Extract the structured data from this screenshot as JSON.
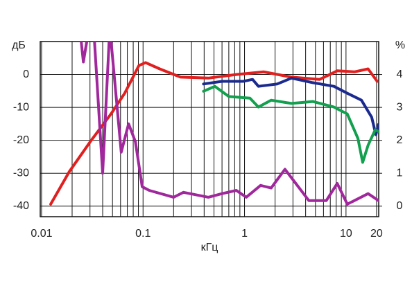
{
  "chart_data": {
    "type": "line",
    "y_label": "дБ",
    "y2_label": "%",
    "x_label": "кГц",
    "log_x": true,
    "grid": true,
    "xlim": [
      0.0097,
      21
    ],
    "xticks": [
      0.01,
      0.1,
      1,
      10,
      20
    ],
    "x_minor_grid": [
      0.02,
      0.03,
      0.04,
      0.05,
      0.06,
      0.07,
      0.08,
      0.09,
      0.2,
      0.3,
      0.4,
      0.5,
      0.6,
      0.7,
      0.8,
      0.9,
      2,
      3,
      4,
      5,
      6,
      7,
      8,
      9
    ],
    "ylim": [
      -43.2,
      10
    ],
    "yticks": [
      -40,
      -30,
      -20,
      -10,
      0
    ],
    "y2lim": [
      -0.32,
      5
    ],
    "y2ticks": [
      0,
      1,
      2,
      3,
      4
    ],
    "series": [
      {
        "name": "red",
        "color": "#e01f1f",
        "x": [
          0.0123,
          0.0188,
          0.0302,
          0.0483,
          0.066,
          0.091,
          0.106,
          0.146,
          0.234,
          0.44,
          0.83,
          1.55,
          2.9,
          5.5,
          8.2,
          12.1,
          16.5,
          20.3
        ],
        "values": [
          -39.4,
          -29.5,
          -20.4,
          -12,
          -5.7,
          2.7,
          3.6,
          1.7,
          -0.8,
          -1.1,
          0,
          0.8,
          -0.8,
          -1.5,
          1.1,
          0.8,
          1.7,
          -2.1
        ]
      },
      {
        "name": "blue",
        "color": "#1b2a8e",
        "x": [
          0.394,
          0.6,
          0.97,
          1.2,
          1.37,
          2.1,
          2.9,
          4.7,
          7.6,
          10.3,
          14.2,
          17.9,
          19.7,
          20.9
        ],
        "values": [
          -2.9,
          -2.1,
          -2.1,
          -1.5,
          -3.6,
          -2.9,
          -1.1,
          -2.5,
          -3.6,
          -5.7,
          -7.8,
          -13,
          -18.3,
          -15.2
        ]
      },
      {
        "name": "green",
        "color": "#12a04e",
        "x": [
          0.394,
          0.51,
          0.7,
          1.13,
          1.37,
          1.83,
          2.9,
          4.7,
          7.6,
          10.3,
          13.1,
          14.6,
          16.5,
          19.4,
          20.9
        ],
        "values": [
          -5.1,
          -3.6,
          -6.7,
          -7.2,
          -9.9,
          -7.8,
          -8.8,
          -8.2,
          -9.9,
          -12,
          -19.4,
          -26.7,
          -21.5,
          -16.8,
          -17.3
        ]
      },
      {
        "name": "purple",
        "color": "#a0289c",
        "axis": "y2",
        "x": [
          0.0246,
          0.0258,
          0.0279,
          0.0326,
          0.04,
          0.047,
          0.061,
          0.072,
          0.084,
          0.098,
          0.115,
          0.2,
          0.25,
          0.44,
          0.6,
          0.83,
          1.04,
          1.44,
          1.83,
          2.5,
          3.2,
          4.3,
          6.4,
          8.2,
          10.3,
          16.5,
          20.9
        ],
        "values": [
          5.0,
          4.38,
          5.0,
          5.43,
          1.0,
          5.43,
          1.64,
          2.5,
          1.96,
          0.59,
          0.48,
          0.27,
          0.42,
          0.27,
          0.38,
          0.48,
          0.27,
          0.63,
          0.55,
          1.12,
          0.69,
          0.17,
          0.17,
          0.69,
          0.06,
          0.38,
          0.17
        ]
      }
    ]
  }
}
